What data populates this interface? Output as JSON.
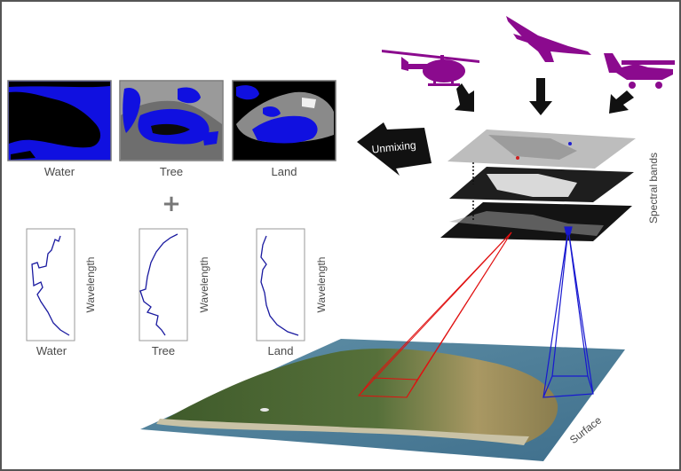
{
  "abundance_maps": [
    {
      "label": "Water"
    },
    {
      "label": "Tree"
    },
    {
      "label": "Land"
    }
  ],
  "plus_symbol": "+",
  "unmixing_label": "Unmixing",
  "spectral_bands_label": "Spectral bands",
  "surface_label": "Surface",
  "spectra": [
    {
      "label": "Water",
      "axis_label": "Wavelength"
    },
    {
      "label": "Tree",
      "axis_label": "Wavelength"
    },
    {
      "label": "Land",
      "axis_label": "Wavelength"
    }
  ],
  "platform_icons": [
    "helicopter-icon",
    "drone-icon",
    "airplane-icon"
  ],
  "colors": {
    "platform": "#8B0A8E",
    "abundance": "#1010e0",
    "red_pixel_ray": "#e01010",
    "blue_pixel_ray": "#1818d0",
    "arrow": "#111111",
    "border": "#555555"
  }
}
